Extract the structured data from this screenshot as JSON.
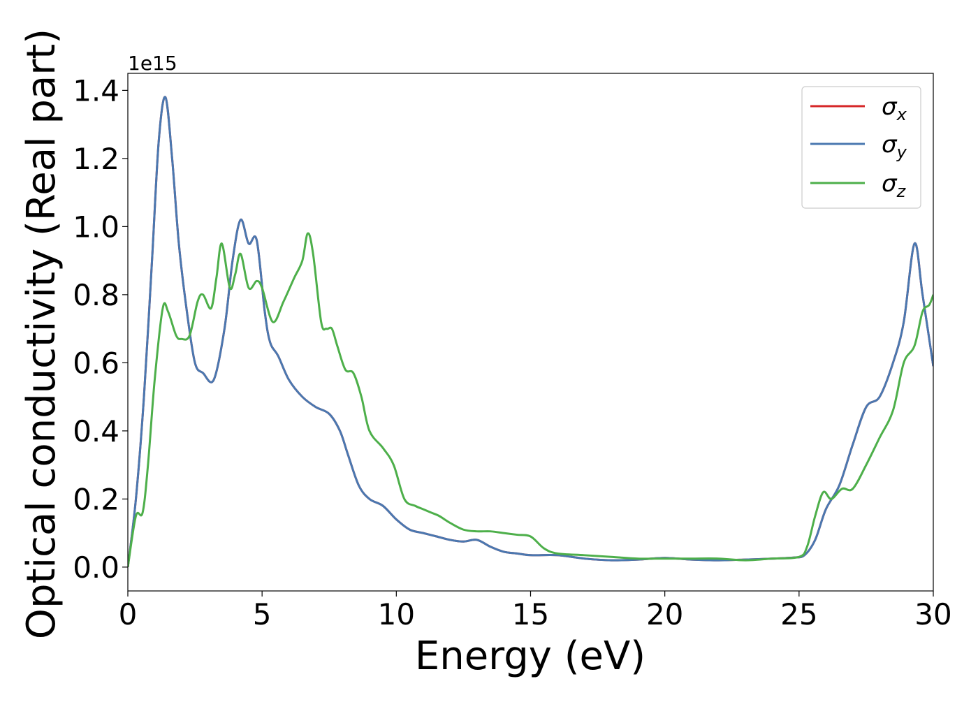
{
  "chart_data": {
    "type": "line",
    "xlabel": "Energy (eV)",
    "ylabel": "Optical conductivity (Real part)",
    "y_offset_label": "1e15",
    "xlim": [
      0,
      30
    ],
    "ylim": [
      -0.07,
      1.45
    ],
    "x_ticks": [
      0,
      5,
      10,
      15,
      20,
      25,
      30
    ],
    "x_tick_labels": [
      "0",
      "5",
      "10",
      "15",
      "20",
      "25",
      "30"
    ],
    "y_ticks": [
      0.0,
      0.2,
      0.4,
      0.6,
      0.8,
      1.0,
      1.2,
      1.4
    ],
    "y_tick_labels": [
      "0.0",
      "0.2",
      "0.4",
      "0.6",
      "0.8",
      "1.0",
      "1.2",
      "1.4"
    ],
    "grid": false,
    "legend_position": "top-right",
    "series": [
      {
        "name": "σx",
        "legend_symbol": "σ",
        "legend_subscript": "x",
        "color": "#d62728",
        "x": [
          0,
          0.3,
          0.6,
          0.9,
          1.15,
          1.4,
          1.65,
          1.9,
          2.2,
          2.5,
          2.8,
          3.2,
          3.6,
          3.9,
          4.2,
          4.5,
          4.8,
          5.1,
          5.3,
          5.6,
          6.0,
          6.5,
          7.0,
          7.5,
          7.9,
          8.2,
          8.6,
          9.0,
          9.5,
          10.0,
          10.5,
          11.0,
          11.5,
          12.0,
          12.5,
          13.0,
          13.5,
          14.0,
          14.5,
          15.0,
          16.0,
          17.0,
          18.0,
          19.0,
          20.0,
          21.0,
          22.0,
          23.0,
          24.0,
          24.8,
          25.2,
          25.6,
          26.0,
          26.5,
          27.0,
          27.5,
          28.0,
          28.5,
          28.9,
          29.3,
          29.6,
          30.0
        ],
        "y": [
          0.0,
          0.2,
          0.5,
          0.9,
          1.25,
          1.38,
          1.2,
          0.95,
          0.75,
          0.6,
          0.57,
          0.55,
          0.7,
          0.9,
          1.02,
          0.95,
          0.96,
          0.75,
          0.66,
          0.62,
          0.55,
          0.5,
          0.47,
          0.45,
          0.4,
          0.33,
          0.24,
          0.2,
          0.18,
          0.14,
          0.11,
          0.1,
          0.09,
          0.08,
          0.075,
          0.08,
          0.06,
          0.045,
          0.04,
          0.035,
          0.035,
          0.025,
          0.02,
          0.022,
          0.027,
          0.022,
          0.02,
          0.022,
          0.025,
          0.028,
          0.035,
          0.08,
          0.17,
          0.24,
          0.36,
          0.47,
          0.5,
          0.6,
          0.72,
          0.95,
          0.8,
          0.59
        ]
      },
      {
        "name": "σy",
        "legend_symbol": "σ",
        "legend_subscript": "y",
        "color": "#4a78b0",
        "x": [
          0,
          0.3,
          0.6,
          0.9,
          1.15,
          1.4,
          1.65,
          1.9,
          2.2,
          2.5,
          2.8,
          3.2,
          3.6,
          3.9,
          4.2,
          4.5,
          4.8,
          5.1,
          5.3,
          5.6,
          6.0,
          6.5,
          7.0,
          7.5,
          7.9,
          8.2,
          8.6,
          9.0,
          9.5,
          10.0,
          10.5,
          11.0,
          11.5,
          12.0,
          12.5,
          13.0,
          13.5,
          14.0,
          14.5,
          15.0,
          16.0,
          17.0,
          18.0,
          19.0,
          20.0,
          21.0,
          22.0,
          23.0,
          24.0,
          24.8,
          25.2,
          25.6,
          26.0,
          26.5,
          27.0,
          27.5,
          28.0,
          28.5,
          28.9,
          29.3,
          29.6,
          30.0
        ],
        "y": [
          0.0,
          0.2,
          0.5,
          0.9,
          1.25,
          1.38,
          1.2,
          0.95,
          0.75,
          0.6,
          0.57,
          0.55,
          0.7,
          0.9,
          1.02,
          0.95,
          0.96,
          0.75,
          0.66,
          0.62,
          0.55,
          0.5,
          0.47,
          0.45,
          0.4,
          0.33,
          0.24,
          0.2,
          0.18,
          0.14,
          0.11,
          0.1,
          0.09,
          0.08,
          0.075,
          0.08,
          0.06,
          0.045,
          0.04,
          0.035,
          0.035,
          0.025,
          0.02,
          0.022,
          0.027,
          0.022,
          0.02,
          0.022,
          0.025,
          0.028,
          0.035,
          0.08,
          0.17,
          0.24,
          0.36,
          0.47,
          0.5,
          0.6,
          0.72,
          0.95,
          0.8,
          0.59
        ]
      },
      {
        "name": "σz",
        "legend_symbol": "σ",
        "legend_subscript": "z",
        "color": "#4daf4a",
        "x": [
          0,
          0.3,
          0.55,
          0.75,
          1.0,
          1.3,
          1.5,
          1.8,
          2.0,
          2.3,
          2.6,
          2.8,
          3.1,
          3.3,
          3.5,
          3.8,
          4.0,
          4.2,
          4.5,
          4.8,
          5.0,
          5.4,
          5.8,
          6.2,
          6.5,
          6.7,
          6.9,
          7.2,
          7.4,
          7.6,
          7.8,
          8.1,
          8.4,
          8.7,
          9.0,
          9.5,
          9.9,
          10.3,
          10.7,
          11.0,
          11.3,
          11.6,
          12.0,
          12.5,
          13.0,
          13.5,
          14.0,
          14.5,
          15.0,
          15.5,
          16.0,
          17.0,
          18.0,
          19.0,
          20.0,
          21.0,
          22.0,
          23.0,
          24.0,
          25.0,
          25.3,
          25.6,
          25.9,
          26.2,
          26.6,
          27.0,
          27.5,
          28.0,
          28.5,
          28.9,
          29.3,
          29.6,
          29.85,
          30.0
        ],
        "y": [
          0.0,
          0.15,
          0.16,
          0.3,
          0.55,
          0.76,
          0.75,
          0.68,
          0.67,
          0.68,
          0.78,
          0.8,
          0.76,
          0.85,
          0.95,
          0.82,
          0.86,
          0.92,
          0.82,
          0.84,
          0.82,
          0.72,
          0.78,
          0.85,
          0.9,
          0.98,
          0.92,
          0.72,
          0.7,
          0.7,
          0.65,
          0.58,
          0.57,
          0.5,
          0.4,
          0.35,
          0.3,
          0.2,
          0.18,
          0.17,
          0.16,
          0.15,
          0.13,
          0.11,
          0.105,
          0.105,
          0.1,
          0.095,
          0.09,
          0.055,
          0.04,
          0.035,
          0.03,
          0.025,
          0.025,
          0.025,
          0.025,
          0.02,
          0.025,
          0.03,
          0.06,
          0.15,
          0.22,
          0.2,
          0.23,
          0.23,
          0.3,
          0.38,
          0.46,
          0.6,
          0.65,
          0.75,
          0.77,
          0.8
        ]
      }
    ]
  }
}
